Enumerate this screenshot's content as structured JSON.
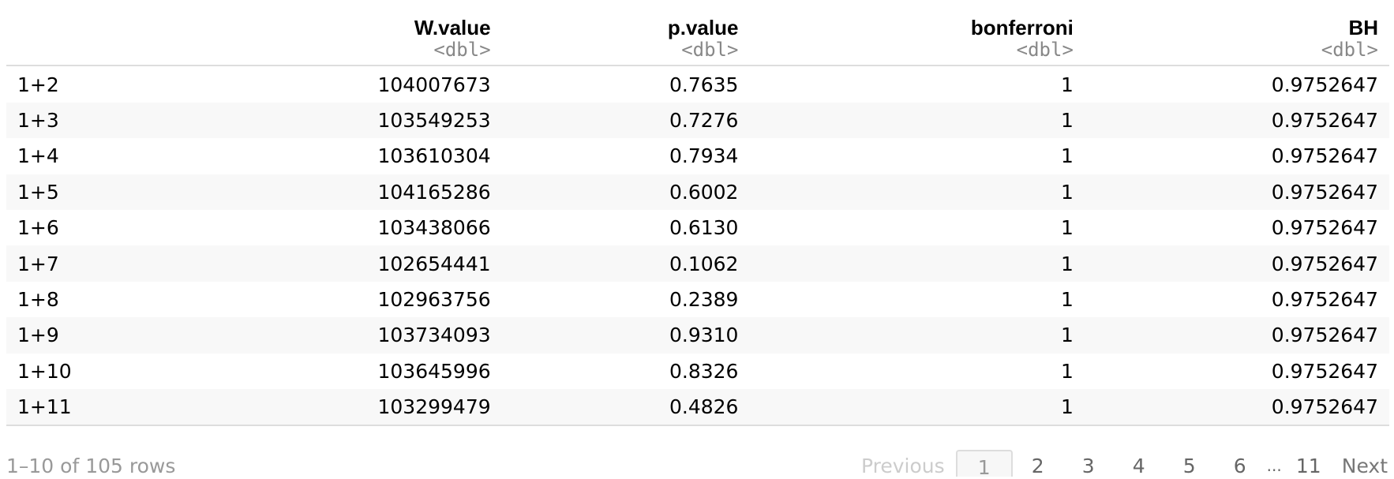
{
  "table": {
    "columns": [
      {
        "name": "",
        "type": ""
      },
      {
        "name": "W.value",
        "type": "<dbl>"
      },
      {
        "name": "p.value",
        "type": "<dbl>"
      },
      {
        "name": "bonferroni",
        "type": "<dbl>"
      },
      {
        "name": "BH",
        "type": "<dbl>"
      }
    ],
    "rows": [
      {
        "label": "1+2",
        "w_value": "104007673",
        "p_value": "0.7635",
        "bonferroni": "1",
        "bh": "0.9752647"
      },
      {
        "label": "1+3",
        "w_value": "103549253",
        "p_value": "0.7276",
        "bonferroni": "1",
        "bh": "0.9752647"
      },
      {
        "label": "1+4",
        "w_value": "103610304",
        "p_value": "0.7934",
        "bonferroni": "1",
        "bh": "0.9752647"
      },
      {
        "label": "1+5",
        "w_value": "104165286",
        "p_value": "0.6002",
        "bonferroni": "1",
        "bh": "0.9752647"
      },
      {
        "label": "1+6",
        "w_value": "103438066",
        "p_value": "0.6130",
        "bonferroni": "1",
        "bh": "0.9752647"
      },
      {
        "label": "1+7",
        "w_value": "102654441",
        "p_value": "0.1062",
        "bonferroni": "1",
        "bh": "0.9752647"
      },
      {
        "label": "1+8",
        "w_value": "102963756",
        "p_value": "0.2389",
        "bonferroni": "1",
        "bh": "0.9752647"
      },
      {
        "label": "1+9",
        "w_value": "103734093",
        "p_value": "0.9310",
        "bonferroni": "1",
        "bh": "0.9752647"
      },
      {
        "label": "1+10",
        "w_value": "103645996",
        "p_value": "0.8326",
        "bonferroni": "1",
        "bh": "0.9752647"
      },
      {
        "label": "1+11",
        "w_value": "103299479",
        "p_value": "0.4826",
        "bonferroni": "1",
        "bh": "0.9752647"
      }
    ]
  },
  "footer": {
    "row_count": "1–10 of 105 rows",
    "pagination": {
      "previous": "Previous",
      "pages": [
        "1",
        "2",
        "3",
        "4",
        "5",
        "6"
      ],
      "ellipsis": "...",
      "last_page": "11",
      "next": "Next",
      "current": "1"
    }
  }
}
